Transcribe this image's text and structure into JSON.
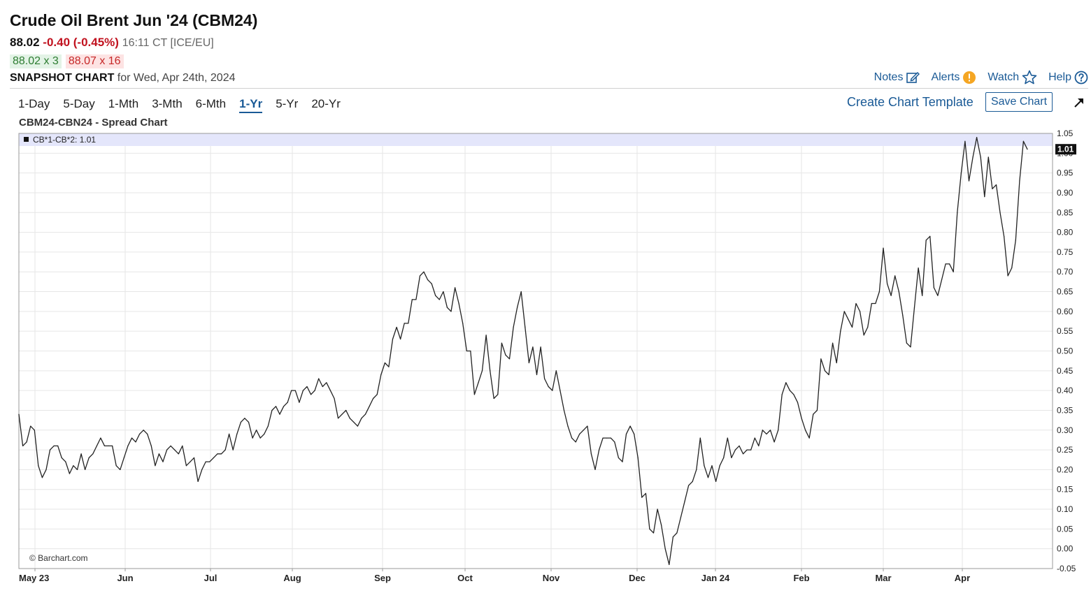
{
  "header": {
    "title": "Crude Oil Brent Jun '24 (CBM24)",
    "last": "88.02",
    "change": "-0.40 (-0.45%)",
    "time": "16:11 CT [ICE/EU]",
    "bid": "88.02 x 3",
    "ask": "88.07 x 16",
    "snapshot_label": "SNAPSHOT CHART",
    "snapshot_date": "for Wed, Apr 24th, 2024"
  },
  "toolbar": {
    "notes": "Notes",
    "alerts": "Alerts",
    "watch": "Watch",
    "help": "Help",
    "create_template": "Create Chart Template",
    "save_chart": "Save Chart",
    "ranges": [
      "1-Day",
      "5-Day",
      "1-Mth",
      "3-Mth",
      "6-Mth",
      "1-Yr",
      "5-Yr",
      "20-Yr"
    ],
    "active_range": "1-Yr"
  },
  "colors": {
    "line": "#222222",
    "link": "#1a5a96",
    "legend_band": "#e4e6fb",
    "grid": "#e6e6e6"
  },
  "chart_data": {
    "type": "line",
    "title": "CBM24-CBN24 - Spread Chart",
    "legend": "CB*1-CB*2: 1.01",
    "last_value_label": "1.01",
    "watermark": "© Barchart.com",
    "ylim": [
      -0.05,
      1.05
    ],
    "yticks": [
      "1.05",
      "1.00",
      "0.95",
      "0.90",
      "0.85",
      "0.80",
      "0.75",
      "0.70",
      "0.65",
      "0.60",
      "0.55",
      "0.50",
      "0.45",
      "0.40",
      "0.35",
      "0.30",
      "0.25",
      "0.20",
      "0.15",
      "0.10",
      "0.05",
      "0.00",
      "-0.05"
    ],
    "xticks": [
      "May 23",
      "Jun",
      "Jul",
      "Aug",
      "Sep",
      "Oct",
      "Nov",
      "Dec",
      "Jan 24",
      "Feb",
      "Mar",
      "Apr"
    ],
    "grid": true,
    "legend_position": "top-left",
    "series": [
      {
        "values": [
          0.34,
          0.26,
          0.27,
          0.31,
          0.3,
          0.21,
          0.18,
          0.2,
          0.25,
          0.26,
          0.26,
          0.23,
          0.22,
          0.19,
          0.21,
          0.2,
          0.24,
          0.2,
          0.23,
          0.24,
          0.26,
          0.28,
          0.26,
          0.26,
          0.26,
          0.21,
          0.2,
          0.23,
          0.26,
          0.28,
          0.27,
          0.29,
          0.3,
          0.29,
          0.26,
          0.21,
          0.24,
          0.22,
          0.25,
          0.26,
          0.25,
          0.24,
          0.26,
          0.21,
          0.22,
          0.23,
          0.17,
          0.2,
          0.22,
          0.22,
          0.23,
          0.24,
          0.24,
          0.25,
          0.29,
          0.25,
          0.29,
          0.32,
          0.33,
          0.32,
          0.28,
          0.3,
          0.28,
          0.29,
          0.31,
          0.35,
          0.36,
          0.34,
          0.36,
          0.37,
          0.4,
          0.4,
          0.37,
          0.4,
          0.41,
          0.39,
          0.4,
          0.43,
          0.41,
          0.42,
          0.4,
          0.38,
          0.33,
          0.34,
          0.35,
          0.33,
          0.32,
          0.31,
          0.33,
          0.34,
          0.36,
          0.38,
          0.39,
          0.44,
          0.47,
          0.46,
          0.53,
          0.56,
          0.53,
          0.57,
          0.57,
          0.63,
          0.63,
          0.69,
          0.7,
          0.68,
          0.67,
          0.64,
          0.63,
          0.65,
          0.61,
          0.6,
          0.66,
          0.62,
          0.57,
          0.5,
          0.5,
          0.39,
          0.42,
          0.45,
          0.54,
          0.45,
          0.38,
          0.39,
          0.52,
          0.49,
          0.48,
          0.56,
          0.61,
          0.65,
          0.56,
          0.47,
          0.51,
          0.44,
          0.51,
          0.43,
          0.41,
          0.4,
          0.45,
          0.4,
          0.35,
          0.31,
          0.28,
          0.27,
          0.29,
          0.3,
          0.31,
          0.24,
          0.2,
          0.25,
          0.28,
          0.28,
          0.28,
          0.27,
          0.23,
          0.22,
          0.29,
          0.31,
          0.29,
          0.23,
          0.13,
          0.14,
          0.05,
          0.04,
          0.1,
          0.06,
          0.0,
          -0.04,
          0.03,
          0.04,
          0.08,
          0.12,
          0.16,
          0.17,
          0.2,
          0.28,
          0.21,
          0.18,
          0.21,
          0.17,
          0.21,
          0.23,
          0.28,
          0.23,
          0.25,
          0.26,
          0.24,
          0.25,
          0.25,
          0.28,
          0.26,
          0.3,
          0.29,
          0.3,
          0.27,
          0.3,
          0.39,
          0.42,
          0.4,
          0.39,
          0.37,
          0.33,
          0.3,
          0.28,
          0.34,
          0.35,
          0.48,
          0.45,
          0.44,
          0.52,
          0.47,
          0.55,
          0.6,
          0.58,
          0.56,
          0.62,
          0.6,
          0.54,
          0.56,
          0.62,
          0.62,
          0.65,
          0.76,
          0.67,
          0.64,
          0.69,
          0.65,
          0.59,
          0.52,
          0.51,
          0.61,
          0.71,
          0.64,
          0.78,
          0.79,
          0.66,
          0.64,
          0.68,
          0.72,
          0.72,
          0.7,
          0.85,
          0.95,
          1.03,
          0.93,
          0.99,
          1.04,
          0.99,
          0.89,
          0.99,
          0.91,
          0.92,
          0.85,
          0.79,
          0.69,
          0.71,
          0.78,
          0.93,
          1.03,
          1.01
        ]
      }
    ]
  }
}
